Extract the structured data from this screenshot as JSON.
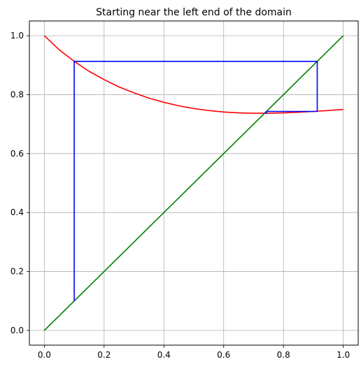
{
  "chart_data": {
    "type": "line",
    "title": "Starting near the left end of the domain",
    "xlabel": "",
    "ylabel": "",
    "xlim": [
      -0.05,
      1.05
    ],
    "ylim": [
      -0.05,
      1.05
    ],
    "grid": true,
    "x_ticks": [
      0.0,
      0.2,
      0.4,
      0.6,
      0.8,
      1.0
    ],
    "y_ticks": [
      0.0,
      0.2,
      0.4,
      0.6,
      0.8,
      1.0
    ],
    "x_tick_labels": [
      "0.0",
      "0.2",
      "0.4",
      "0.6",
      "0.8",
      "1.0"
    ],
    "y_tick_labels": [
      "0.0",
      "0.2",
      "0.4",
      "0.6",
      "0.8",
      "1.0"
    ],
    "series": [
      {
        "color": "#ff0000",
        "x": [
          0.0,
          0.05,
          0.1,
          0.15,
          0.2,
          0.25,
          0.3,
          0.35,
          0.4,
          0.45,
          0.5,
          0.55,
          0.6,
          0.65,
          0.7,
          0.75,
          0.8,
          0.85,
          0.9,
          0.95,
          1.0
        ],
        "y": [
          1.0,
          0.952,
          0.913,
          0.879,
          0.851,
          0.826,
          0.806,
          0.788,
          0.774,
          0.762,
          0.753,
          0.746,
          0.741,
          0.738,
          0.737,
          0.737,
          0.738,
          0.74,
          0.743,
          0.746,
          0.75
        ]
      },
      {
        "color": "#008000",
        "x": [
          0.0,
          1.0
        ],
        "y": [
          0.0,
          1.0
        ]
      },
      {
        "color": "#0000ff",
        "x": [
          0.1,
          0.1,
          0.913,
          0.913,
          0.743,
          0.743,
          0.737
        ],
        "y": [
          0.1,
          0.913,
          0.913,
          0.743,
          0.743,
          0.738,
          0.738
        ]
      }
    ]
  }
}
